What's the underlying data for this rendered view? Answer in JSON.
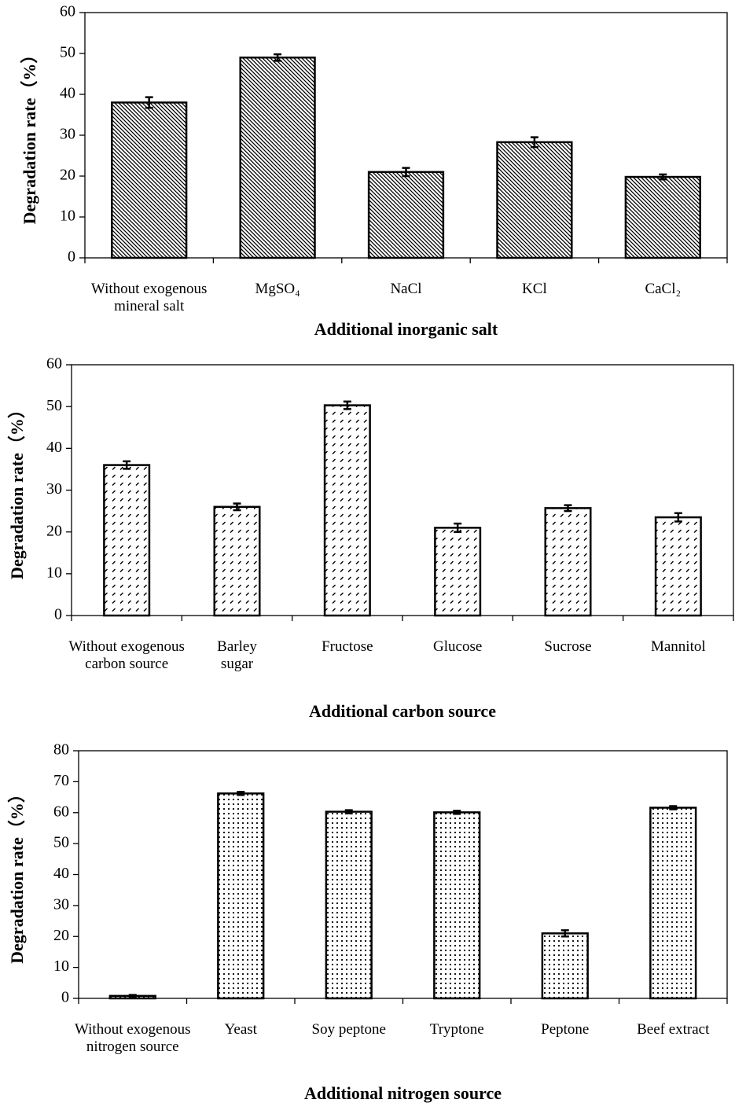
{
  "chart_data": [
    {
      "type": "bar",
      "pattern": "diagonal",
      "color": "#000000",
      "y_label": "Degradation rate（%）",
      "x_label": "Additional inorganic salt",
      "categories": [
        "Without exogenous\nmineral salt",
        "MgSO₄",
        "NaCl",
        "KCl",
        "CaCl₂"
      ],
      "values": [
        38,
        49,
        21,
        28.3,
        19.8
      ],
      "errors": [
        1.3,
        0.8,
        1.0,
        1.2,
        0.6
      ],
      "ylim": [
        0,
        60
      ],
      "yticks": [
        0,
        10,
        20,
        30,
        40,
        50,
        60
      ]
    },
    {
      "type": "bar",
      "pattern": "dashes",
      "color": "#000000",
      "y_label": "Degradation rate（%）",
      "x_label": "Additional carbon source",
      "categories": [
        "Without exogenous\ncarbon source",
        "Barley\nsugar",
        "Fructose",
        "Glucose",
        "Sucrose",
        "Mannitol"
      ],
      "values": [
        36,
        26,
        50.3,
        21,
        25.7,
        23.5
      ],
      "errors": [
        0.9,
        0.8,
        0.9,
        1.0,
        0.7,
        1.0
      ],
      "ylim": [
        0,
        60
      ],
      "yticks": [
        0,
        10,
        20,
        30,
        40,
        50,
        60
      ]
    },
    {
      "type": "bar",
      "pattern": "dots",
      "color": "#000000",
      "y_label": "Degradation rate（%）",
      "x_label": "Additional nitrogen source",
      "categories": [
        "Without exogenous\nnitrogen source",
        "Yeast",
        "Soy peptone",
        "Tryptone",
        "Peptone",
        "Beef extract"
      ],
      "values": [
        0.8,
        66.2,
        60.3,
        60.1,
        21,
        61.6
      ],
      "errors": [
        0.3,
        0.5,
        0.5,
        0.5,
        1.0,
        0.5
      ],
      "ylim": [
        0,
        80
      ],
      "yticks": [
        0,
        10,
        20,
        30,
        40,
        50,
        60,
        70,
        80
      ]
    }
  ]
}
